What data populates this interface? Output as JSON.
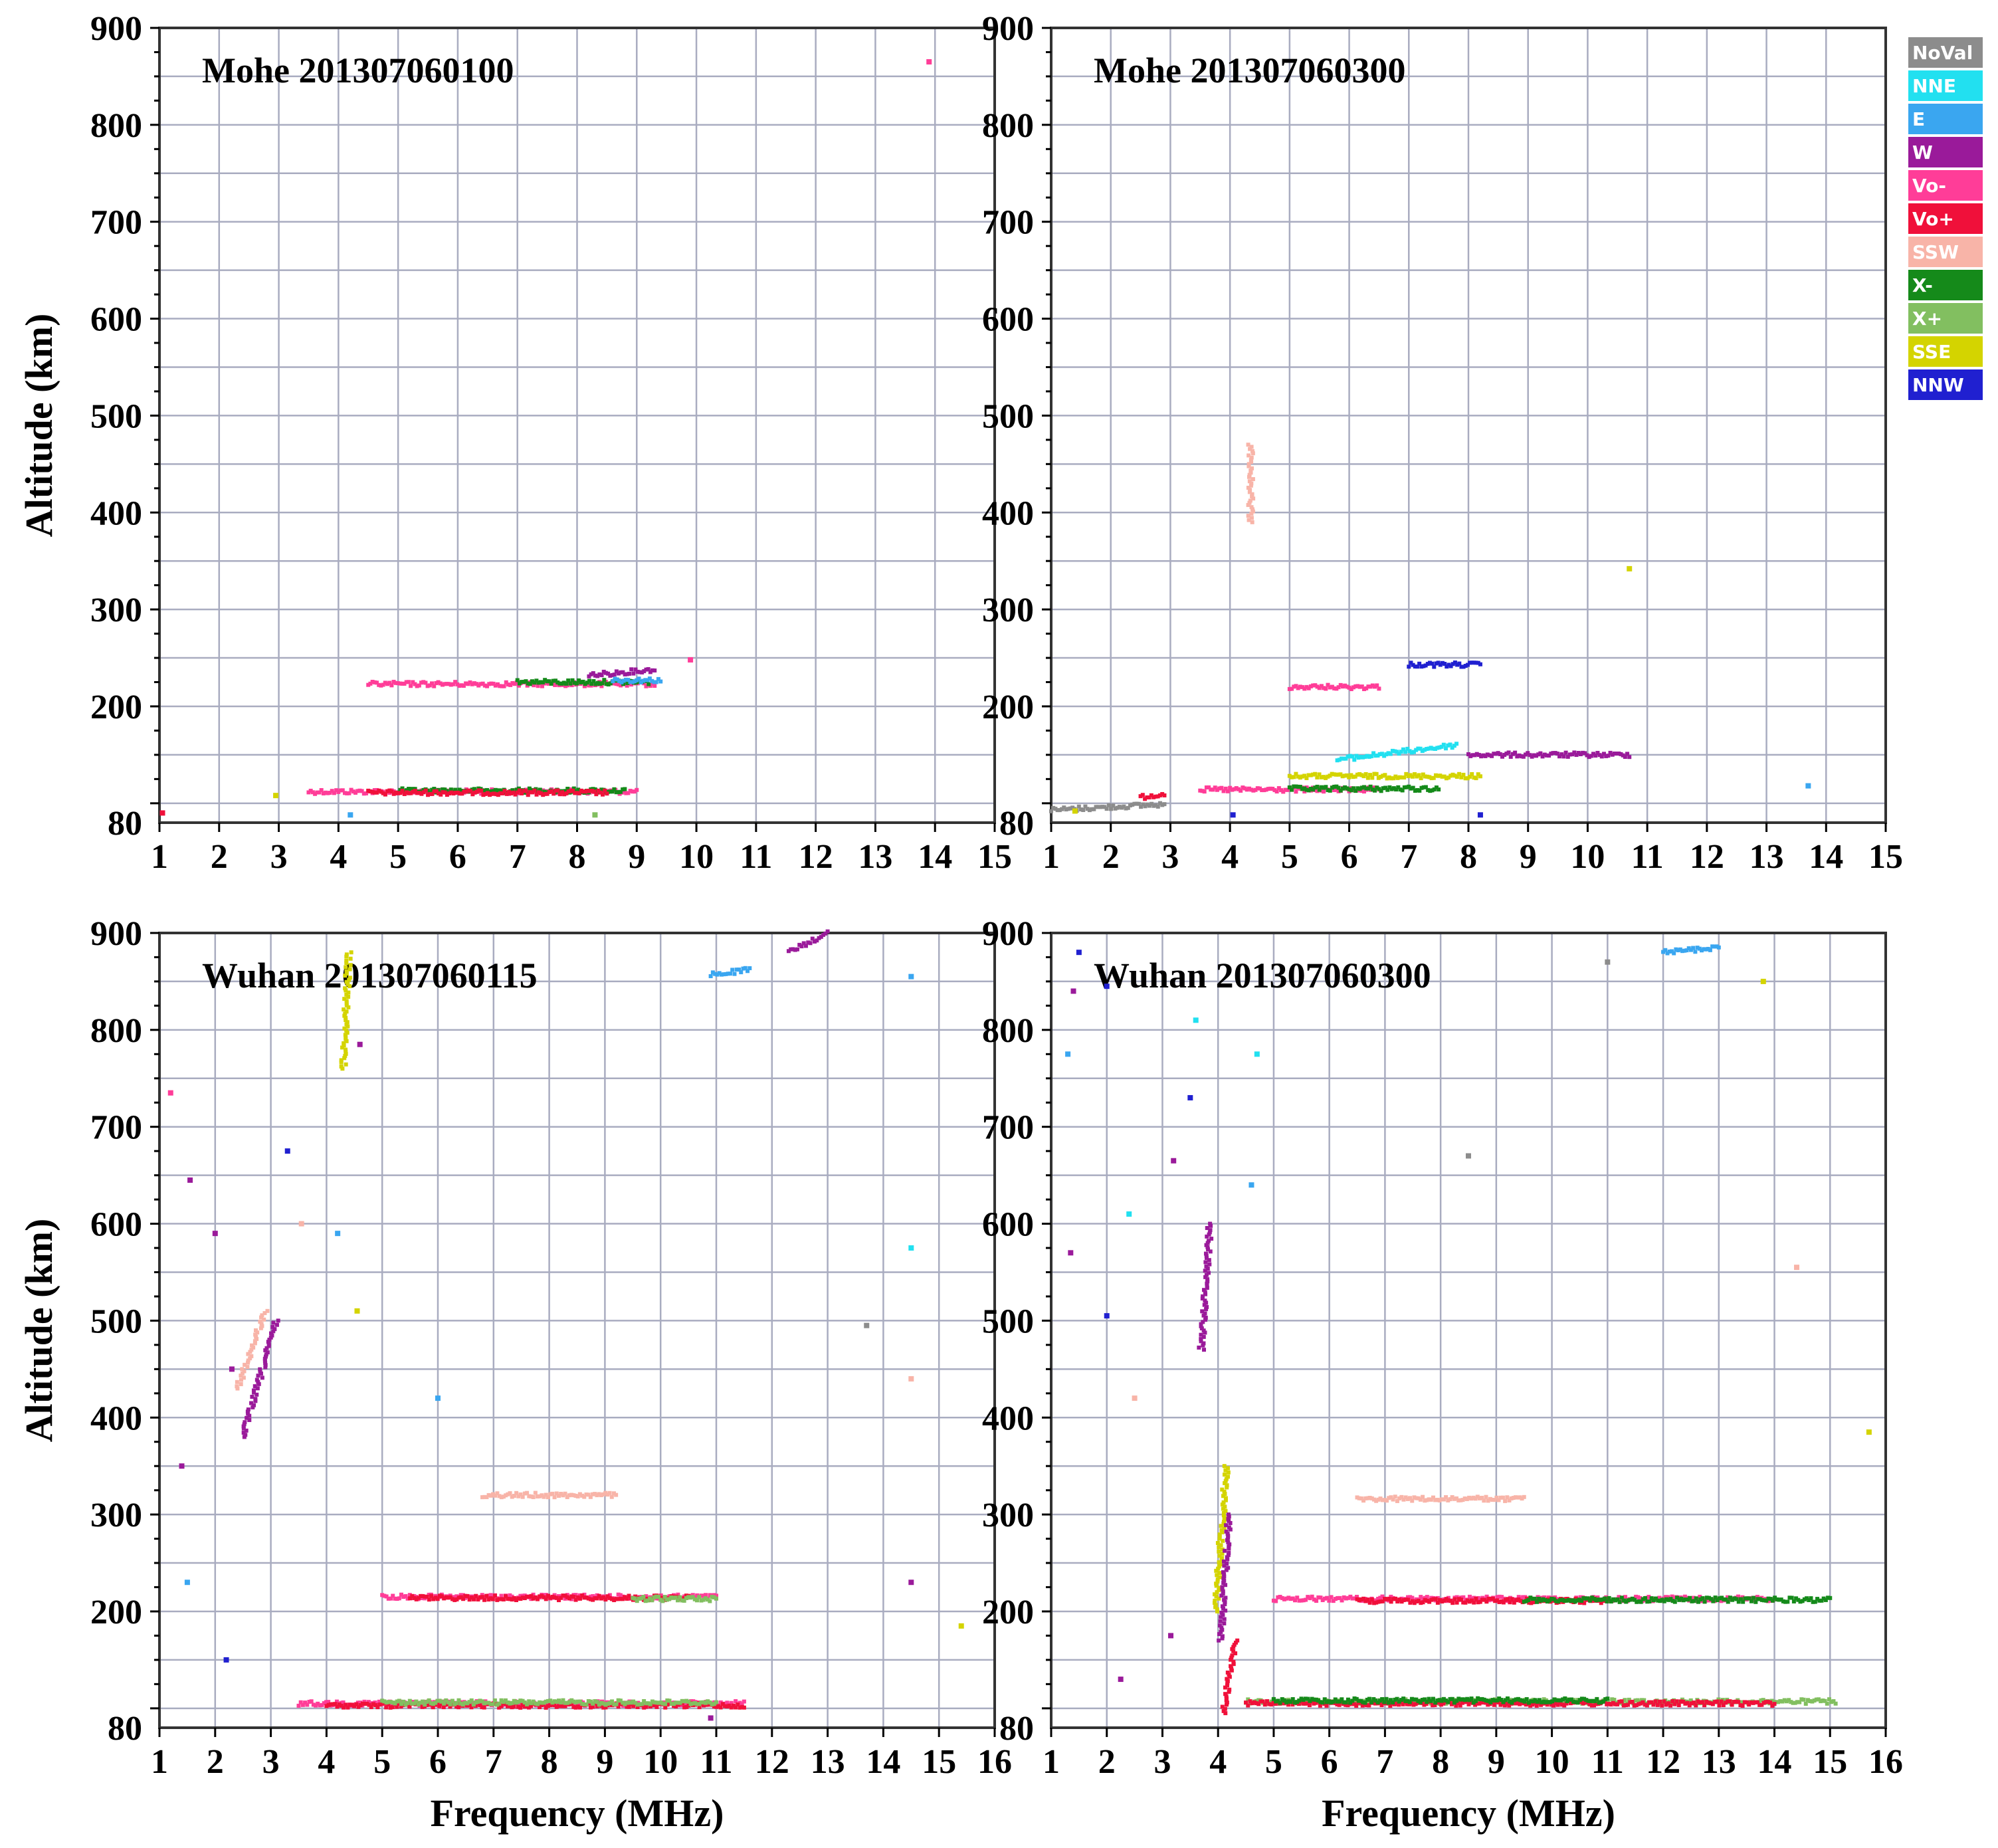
{
  "figure": {
    "y_axis_label": "Altitude (km)",
    "x_axis_label": "Frequency (MHz)"
  },
  "legend": [
    {
      "label": "NoVal",
      "color": "#8c8c8c"
    },
    {
      "label": "NNE",
      "color": "#22e0f0"
    },
    {
      "label": "E",
      "color": "#3aa6f0"
    },
    {
      "label": "W",
      "color": "#9a1a9a"
    },
    {
      "label": "Vo-",
      "color": "#ff3d98"
    },
    {
      "label": "Vo+",
      "color": "#f0103a"
    },
    {
      "label": "SSW",
      "color": "#f8b4a8"
    },
    {
      "label": "X-",
      "color": "#158a1a"
    },
    {
      "label": "X+",
      "color": "#82bf60"
    },
    {
      "label": "SSE",
      "color": "#d4d400"
    },
    {
      "label": "NNW",
      "color": "#2020d0"
    }
  ],
  "chart_data": [
    {
      "type": "scatter",
      "title": "Mohe 201307060100",
      "xlim": [
        1,
        15
      ],
      "ylim": [
        80,
        900
      ],
      "x_ticks": [
        1,
        2,
        3,
        4,
        5,
        6,
        7,
        8,
        9,
        10,
        11,
        12,
        13,
        14,
        15
      ],
      "y_ticks": [
        80,
        200,
        300,
        400,
        500,
        600,
        700,
        800,
        900
      ],
      "grid": true,
      "traces": [
        {
          "legend": "Vo-",
          "x": [
            3.5,
            9.0
          ],
          "y": [
            112,
            112
          ]
        },
        {
          "legend": "X-",
          "x": [
            5.0,
            8.8
          ],
          "y": [
            113,
            113
          ]
        },
        {
          "legend": "Vo+",
          "x": [
            4.5,
            8.5
          ],
          "y": [
            111,
            111
          ]
        },
        {
          "legend": "Vo-",
          "x": [
            4.5,
            9.3
          ],
          "y": [
            223,
            223
          ]
        },
        {
          "legend": "X-",
          "x": [
            7.0,
            9.2
          ],
          "y": [
            225,
            225
          ]
        },
        {
          "legend": "W",
          "x": [
            8.2,
            9.3
          ],
          "y": [
            232,
            238
          ]
        },
        {
          "legend": "E",
          "x": [
            8.6,
            9.4
          ],
          "y": [
            227,
            227
          ]
        }
      ],
      "points": [
        {
          "x": 1.05,
          "y": 90,
          "legend": "Vo+"
        },
        {
          "x": 4.2,
          "y": 88,
          "legend": "E"
        },
        {
          "x": 2.95,
          "y": 108,
          "legend": "SSE"
        },
        {
          "x": 9.9,
          "y": 248,
          "legend": "Vo-"
        },
        {
          "x": 13.9,
          "y": 865,
          "legend": "Vo-"
        },
        {
          "x": 8.3,
          "y": 88,
          "legend": "X+"
        }
      ]
    },
    {
      "type": "scatter",
      "title": "Mohe 201307060300",
      "xlim": [
        1,
        15
      ],
      "ylim": [
        80,
        900
      ],
      "x_ticks": [
        1,
        2,
        3,
        4,
        5,
        6,
        7,
        8,
        9,
        10,
        11,
        12,
        13,
        14,
        15
      ],
      "y_ticks": [
        80,
        200,
        300,
        400,
        500,
        600,
        700,
        800,
        900
      ],
      "grid": true,
      "traces": [
        {
          "legend": "NoVal",
          "x": [
            1.0,
            2.9
          ],
          "y": [
            93,
            99
          ]
        },
        {
          "legend": "Vo+",
          "x": [
            2.5,
            2.9
          ],
          "y": [
            106,
            110
          ]
        },
        {
          "legend": "Vo-",
          "x": [
            3.5,
            6.5
          ],
          "y": [
            114,
            114
          ]
        },
        {
          "legend": "X-",
          "x": [
            5.0,
            7.5
          ],
          "y": [
            115,
            115
          ]
        },
        {
          "legend": "SSE",
          "x": [
            5.0,
            8.2
          ],
          "y": [
            128,
            128
          ]
        },
        {
          "legend": "NNE",
          "x": [
            5.8,
            7.8
          ],
          "y": [
            145,
            160
          ]
        },
        {
          "legend": "W",
          "x": [
            8.0,
            10.7
          ],
          "y": [
            150,
            150
          ]
        },
        {
          "legend": "Vo-",
          "x": [
            5.0,
            6.5
          ],
          "y": [
            220,
            220
          ]
        },
        {
          "legend": "NNW",
          "x": [
            7.0,
            8.2
          ],
          "y": [
            243,
            243
          ]
        },
        {
          "legend": "SSW",
          "x": [
            4.35,
            4.35
          ],
          "y": [
            390,
            470
          ]
        }
      ],
      "points": [
        {
          "x": 1.4,
          "y": 92,
          "legend": "SSE"
        },
        {
          "x": 4.05,
          "y": 88,
          "legend": "NNW"
        },
        {
          "x": 8.2,
          "y": 88,
          "legend": "NNW"
        },
        {
          "x": 10.7,
          "y": 342,
          "legend": "SSE"
        },
        {
          "x": 13.7,
          "y": 118,
          "legend": "E"
        }
      ]
    },
    {
      "type": "scatter",
      "title": "Wuhan 201307060115",
      "xlim": [
        1,
        16
      ],
      "ylim": [
        80,
        900
      ],
      "x_ticks": [
        1,
        2,
        3,
        4,
        5,
        6,
        7,
        8,
        9,
        10,
        11,
        12,
        13,
        14,
        15,
        16
      ],
      "y_ticks": [
        80,
        200,
        300,
        400,
        500,
        600,
        700,
        800,
        900
      ],
      "grid": true,
      "traces": [
        {
          "legend": "SSW",
          "x": [
            2.4,
            2.9
          ],
          "y": [
            430,
            510
          ]
        },
        {
          "legend": "W",
          "x": [
            2.5,
            3.1
          ],
          "y": [
            380,
            500
          ]
        },
        {
          "legend": "Vo-",
          "x": [
            3.5,
            11.5
          ],
          "y": [
            105,
            105
          ]
        },
        {
          "legend": "Vo+",
          "x": [
            4.0,
            11.5
          ],
          "y": [
            103,
            103
          ]
        },
        {
          "legend": "X+",
          "x": [
            5.0,
            11.0
          ],
          "y": [
            106,
            106
          ]
        },
        {
          "legend": "Vo-",
          "x": [
            5.0,
            11.0
          ],
          "y": [
            215,
            215
          ]
        },
        {
          "legend": "Vo+",
          "x": [
            5.5,
            10.5
          ],
          "y": [
            214,
            214
          ]
        },
        {
          "legend": "X+",
          "x": [
            9.5,
            11.0
          ],
          "y": [
            213,
            213
          ]
        },
        {
          "legend": "SSW",
          "x": [
            6.8,
            9.2
          ],
          "y": [
            320,
            320
          ]
        },
        {
          "legend": "E",
          "x": [
            10.9,
            11.6
          ],
          "y": [
            857,
            862
          ]
        },
        {
          "legend": "W",
          "x": [
            12.3,
            13.0
          ],
          "y": [
            880,
            900
          ]
        },
        {
          "legend": "SSE",
          "x": [
            4.3,
            4.4
          ],
          "y": [
            760,
            880
          ]
        }
      ],
      "points": [
        {
          "x": 1.2,
          "y": 735,
          "legend": "Vo-"
        },
        {
          "x": 1.55,
          "y": 645,
          "legend": "W"
        },
        {
          "x": 2.0,
          "y": 590,
          "legend": "W"
        },
        {
          "x": 2.3,
          "y": 450,
          "legend": "W"
        },
        {
          "x": 1.4,
          "y": 350,
          "legend": "W"
        },
        {
          "x": 1.5,
          "y": 230,
          "legend": "E"
        },
        {
          "x": 2.2,
          "y": 150,
          "legend": "NNW"
        },
        {
          "x": 3.3,
          "y": 675,
          "legend": "NNW"
        },
        {
          "x": 3.55,
          "y": 600,
          "legend": "SSW"
        },
        {
          "x": 4.2,
          "y": 590,
          "legend": "E"
        },
        {
          "x": 4.55,
          "y": 510,
          "legend": "SSE"
        },
        {
          "x": 4.6,
          "y": 785,
          "legend": "W"
        },
        {
          "x": 6.0,
          "y": 420,
          "legend": "E"
        },
        {
          "x": 14.5,
          "y": 855,
          "legend": "E"
        },
        {
          "x": 14.5,
          "y": 575,
          "legend": "NNE"
        },
        {
          "x": 14.5,
          "y": 440,
          "legend": "SSW"
        },
        {
          "x": 14.5,
          "y": 230,
          "legend": "W"
        },
        {
          "x": 15.4,
          "y": 185,
          "legend": "SSE"
        },
        {
          "x": 13.7,
          "y": 495,
          "legend": "NoVal"
        },
        {
          "x": 10.9,
          "y": 90,
          "legend": "W"
        }
      ]
    },
    {
      "type": "scatter",
      "title": "Wuhan 201307060300",
      "xlim": [
        1,
        16
      ],
      "ylim": [
        80,
        900
      ],
      "x_ticks": [
        1,
        2,
        3,
        4,
        5,
        6,
        7,
        8,
        9,
        10,
        11,
        12,
        13,
        14,
        15,
        16
      ],
      "y_ticks": [
        80,
        200,
        300,
        400,
        500,
        600,
        700,
        800,
        900
      ],
      "grid": true,
      "traces": [
        {
          "legend": "W",
          "x": [
            3.7,
            3.85
          ],
          "y": [
            470,
            600
          ]
        },
        {
          "legend": "SSE",
          "x": [
            3.95,
            4.15
          ],
          "y": [
            200,
            350
          ]
        },
        {
          "legend": "W",
          "x": [
            4.05,
            4.2
          ],
          "y": [
            170,
            300
          ]
        },
        {
          "legend": "Vo+",
          "x": [
            4.1,
            4.3
          ],
          "y": [
            95,
            170
          ]
        },
        {
          "legend": "X+",
          "x": [
            4.5,
            15.1
          ],
          "y": [
            107,
            107
          ]
        },
        {
          "legend": "Vo+",
          "x": [
            4.5,
            14.0
          ],
          "y": [
            105,
            105
          ]
        },
        {
          "legend": "X-",
          "x": [
            5.0,
            11.0
          ],
          "y": [
            108,
            108
          ]
        },
        {
          "legend": "Vo-",
          "x": [
            5.0,
            14.0
          ],
          "y": [
            213,
            213
          ]
        },
        {
          "legend": "Vo+",
          "x": [
            6.5,
            11.0
          ],
          "y": [
            211,
            211
          ]
        },
        {
          "legend": "X-",
          "x": [
            9.5,
            15.0
          ],
          "y": [
            212,
            212
          ]
        },
        {
          "legend": "SSW",
          "x": [
            6.5,
            9.5
          ],
          "y": [
            316,
            316
          ]
        },
        {
          "legend": "E",
          "x": [
            12.0,
            13.0
          ],
          "y": [
            880,
            885
          ]
        }
      ],
      "points": [
        {
          "x": 1.4,
          "y": 840,
          "legend": "W"
        },
        {
          "x": 1.5,
          "y": 880,
          "legend": "NNW"
        },
        {
          "x": 2.0,
          "y": 845,
          "legend": "NNW"
        },
        {
          "x": 1.3,
          "y": 775,
          "legend": "E"
        },
        {
          "x": 1.35,
          "y": 570,
          "legend": "W"
        },
        {
          "x": 2.0,
          "y": 505,
          "legend": "NNW"
        },
        {
          "x": 2.4,
          "y": 610,
          "legend": "NNE"
        },
        {
          "x": 2.5,
          "y": 420,
          "legend": "SSW"
        },
        {
          "x": 2.25,
          "y": 130,
          "legend": "W"
        },
        {
          "x": 3.2,
          "y": 665,
          "legend": "W"
        },
        {
          "x": 3.5,
          "y": 730,
          "legend": "NNW"
        },
        {
          "x": 3.6,
          "y": 810,
          "legend": "NNE"
        },
        {
          "x": 3.15,
          "y": 175,
          "legend": "W"
        },
        {
          "x": 4.7,
          "y": 775,
          "legend": "NNE"
        },
        {
          "x": 4.6,
          "y": 640,
          "legend": "E"
        },
        {
          "x": 8.5,
          "y": 670,
          "legend": "NoVal"
        },
        {
          "x": 13.8,
          "y": 850,
          "legend": "SSE"
        },
        {
          "x": 14.4,
          "y": 555,
          "legend": "SSW"
        },
        {
          "x": 15.7,
          "y": 385,
          "legend": "SSE"
        },
        {
          "x": 11.0,
          "y": 870,
          "legend": "NoVal"
        }
      ]
    }
  ]
}
